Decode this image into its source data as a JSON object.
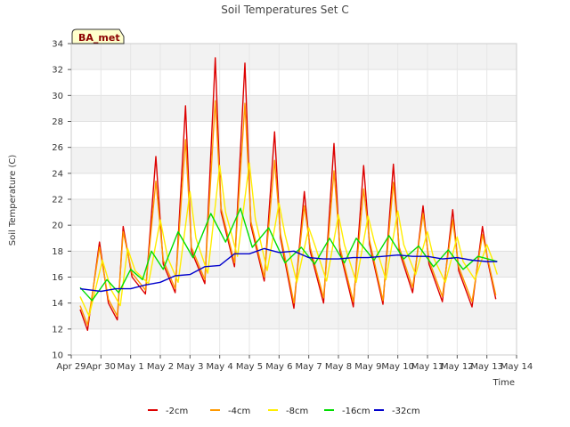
{
  "chart_data": {
    "type": "line",
    "title": "Soil Temperatures Set C",
    "xlabel": "Time",
    "ylabel": "Soil Temperature (C)",
    "badge": "BA_met",
    "ylim": [
      10,
      34
    ],
    "yticks": [
      10,
      12,
      14,
      16,
      18,
      20,
      22,
      24,
      26,
      28,
      30,
      32,
      34
    ],
    "xlim": [
      0,
      15
    ],
    "xtick_labels": [
      "Apr 29",
      "Apr 30",
      "May 1",
      "May 2",
      "May 3",
      "May 4",
      "May 5",
      "May 6",
      "May 7",
      "May 8",
      "May 9",
      "May 10",
      "May 11",
      "May 12",
      "May 13",
      "May 14"
    ],
    "grid": true,
    "legend_position": "bottom",
    "series": [
      {
        "name": "-2cm",
        "color": "#dd0000",
        "x": [
          0.3,
          0.55,
          0.95,
          1.25,
          1.55,
          1.75,
          2.05,
          2.5,
          2.85,
          3.1,
          3.5,
          3.85,
          4.05,
          4.5,
          4.85,
          5.05,
          5.5,
          5.85,
          6.05,
          6.5,
          6.85,
          7.05,
          7.5,
          7.85,
          8.05,
          8.5,
          8.85,
          9.05,
          9.5,
          9.85,
          10.05,
          10.5,
          10.85,
          11.05,
          11.5,
          11.85,
          12.05,
          12.5,
          12.85,
          13.05,
          13.5,
          13.85,
          14.05,
          14.3
        ],
        "y": [
          13.5,
          11.9,
          18.7,
          14,
          12.7,
          19.9,
          16,
          14.7,
          25.3,
          17,
          14.8,
          29.2,
          18,
          15.5,
          32.9,
          21,
          16.8,
          32.5,
          20,
          15.7,
          27.2,
          19,
          13.6,
          22.6,
          18,
          14,
          26.3,
          18,
          13.7,
          24.6,
          18.5,
          13.9,
          24.7,
          18,
          14.8,
          21.5,
          17,
          14.1,
          21.2,
          16.5,
          13.7,
          19.9,
          17,
          14.3
        ]
      },
      {
        "name": "-4cm",
        "color": "#ff9900",
        "x": [
          0.3,
          0.55,
          0.95,
          1.25,
          1.55,
          1.75,
          2.05,
          2.5,
          2.85,
          3.1,
          3.5,
          3.85,
          4.05,
          4.5,
          4.85,
          5.05,
          5.5,
          5.85,
          6.05,
          6.5,
          6.85,
          7.05,
          7.5,
          7.85,
          8.05,
          8.5,
          8.85,
          9.05,
          9.5,
          9.85,
          10.05,
          10.5,
          10.85,
          11.05,
          11.5,
          11.85,
          12.05,
          12.5,
          12.85,
          13.05,
          13.5,
          13.85,
          14.05,
          14.3
        ],
        "y": [
          13.8,
          12.3,
          18.3,
          14.3,
          13,
          19.5,
          16.3,
          15,
          23.4,
          17.3,
          15.1,
          26.6,
          18.3,
          15.8,
          29.6,
          21.3,
          17.1,
          29.4,
          20.3,
          16,
          25,
          19.3,
          14,
          21.5,
          18.3,
          14.4,
          24.2,
          18.3,
          14.1,
          22.8,
          18.8,
          14.2,
          23.3,
          18.3,
          15.2,
          20.9,
          17.3,
          14.5,
          20.4,
          16.8,
          14.1,
          19.3,
          17.2,
          14.6
        ]
      },
      {
        "name": "-8cm",
        "color": "#ffee00",
        "x": [
          0.3,
          0.6,
          1.05,
          1.35,
          1.65,
          1.9,
          2.15,
          2.6,
          3,
          3.25,
          3.6,
          4,
          4.2,
          4.6,
          5,
          5.2,
          5.6,
          6,
          6.2,
          6.6,
          7,
          7.2,
          7.6,
          8,
          8.2,
          8.6,
          9,
          9.2,
          9.6,
          10,
          10.2,
          10.6,
          11,
          11.2,
          11.6,
          12,
          12.2,
          12.6,
          13,
          13.2,
          13.6,
          14,
          14.2,
          14.35
        ],
        "y": [
          14.5,
          13,
          17.3,
          15,
          13.8,
          18.2,
          16.5,
          15.5,
          20.4,
          17.5,
          15.6,
          22.6,
          19,
          16.3,
          24.6,
          21,
          17.6,
          24.8,
          20.5,
          16.5,
          21.7,
          19.3,
          15.6,
          19.8,
          18.5,
          15.7,
          20.8,
          18.5,
          15.6,
          20.7,
          18.8,
          15.8,
          21.1,
          18.5,
          16.2,
          19.5,
          17.5,
          15.6,
          19.1,
          17.2,
          15.8,
          18.5,
          17.3,
          16.2
        ]
      },
      {
        "name": "-16cm",
        "color": "#00dd00",
        "x": [
          0.3,
          0.7,
          1.2,
          1.6,
          2,
          2.4,
          2.7,
          3.1,
          3.6,
          4.1,
          4.7,
          5.2,
          5.7,
          6.1,
          6.65,
          7.2,
          7.75,
          8.2,
          8.7,
          9.2,
          9.6,
          10.2,
          10.7,
          11.2,
          11.7,
          12.2,
          12.7,
          13.2,
          13.7,
          14.2,
          14.35
        ],
        "y": [
          15.2,
          14.2,
          15.8,
          14.8,
          16.6,
          15.8,
          18,
          16.6,
          19.5,
          17.5,
          20.9,
          18.7,
          21.3,
          18.3,
          19.8,
          17.1,
          18.3,
          17,
          19,
          17.1,
          19,
          17.3,
          19.2,
          17.4,
          18.4,
          16.8,
          18.1,
          16.6,
          17.6,
          17.3,
          17.2
        ]
      },
      {
        "name": "-32cm",
        "color": "#0000cc",
        "x": [
          0.3,
          1,
          1.5,
          2,
          2.5,
          3,
          3.5,
          4,
          4.5,
          5,
          5.5,
          6,
          6.5,
          7,
          7.5,
          8,
          8.5,
          9,
          9.5,
          10,
          10.5,
          11,
          11.5,
          12,
          12.5,
          13,
          13.5,
          14,
          14.35
        ],
        "y": [
          15.1,
          14.9,
          15.1,
          15.1,
          15.4,
          15.6,
          16.1,
          16.2,
          16.8,
          16.9,
          17.8,
          17.8,
          18.2,
          17.9,
          18,
          17.5,
          17.4,
          17.4,
          17.5,
          17.5,
          17.6,
          17.7,
          17.6,
          17.6,
          17.4,
          17.5,
          17.3,
          17.2,
          17.2
        ]
      }
    ]
  }
}
